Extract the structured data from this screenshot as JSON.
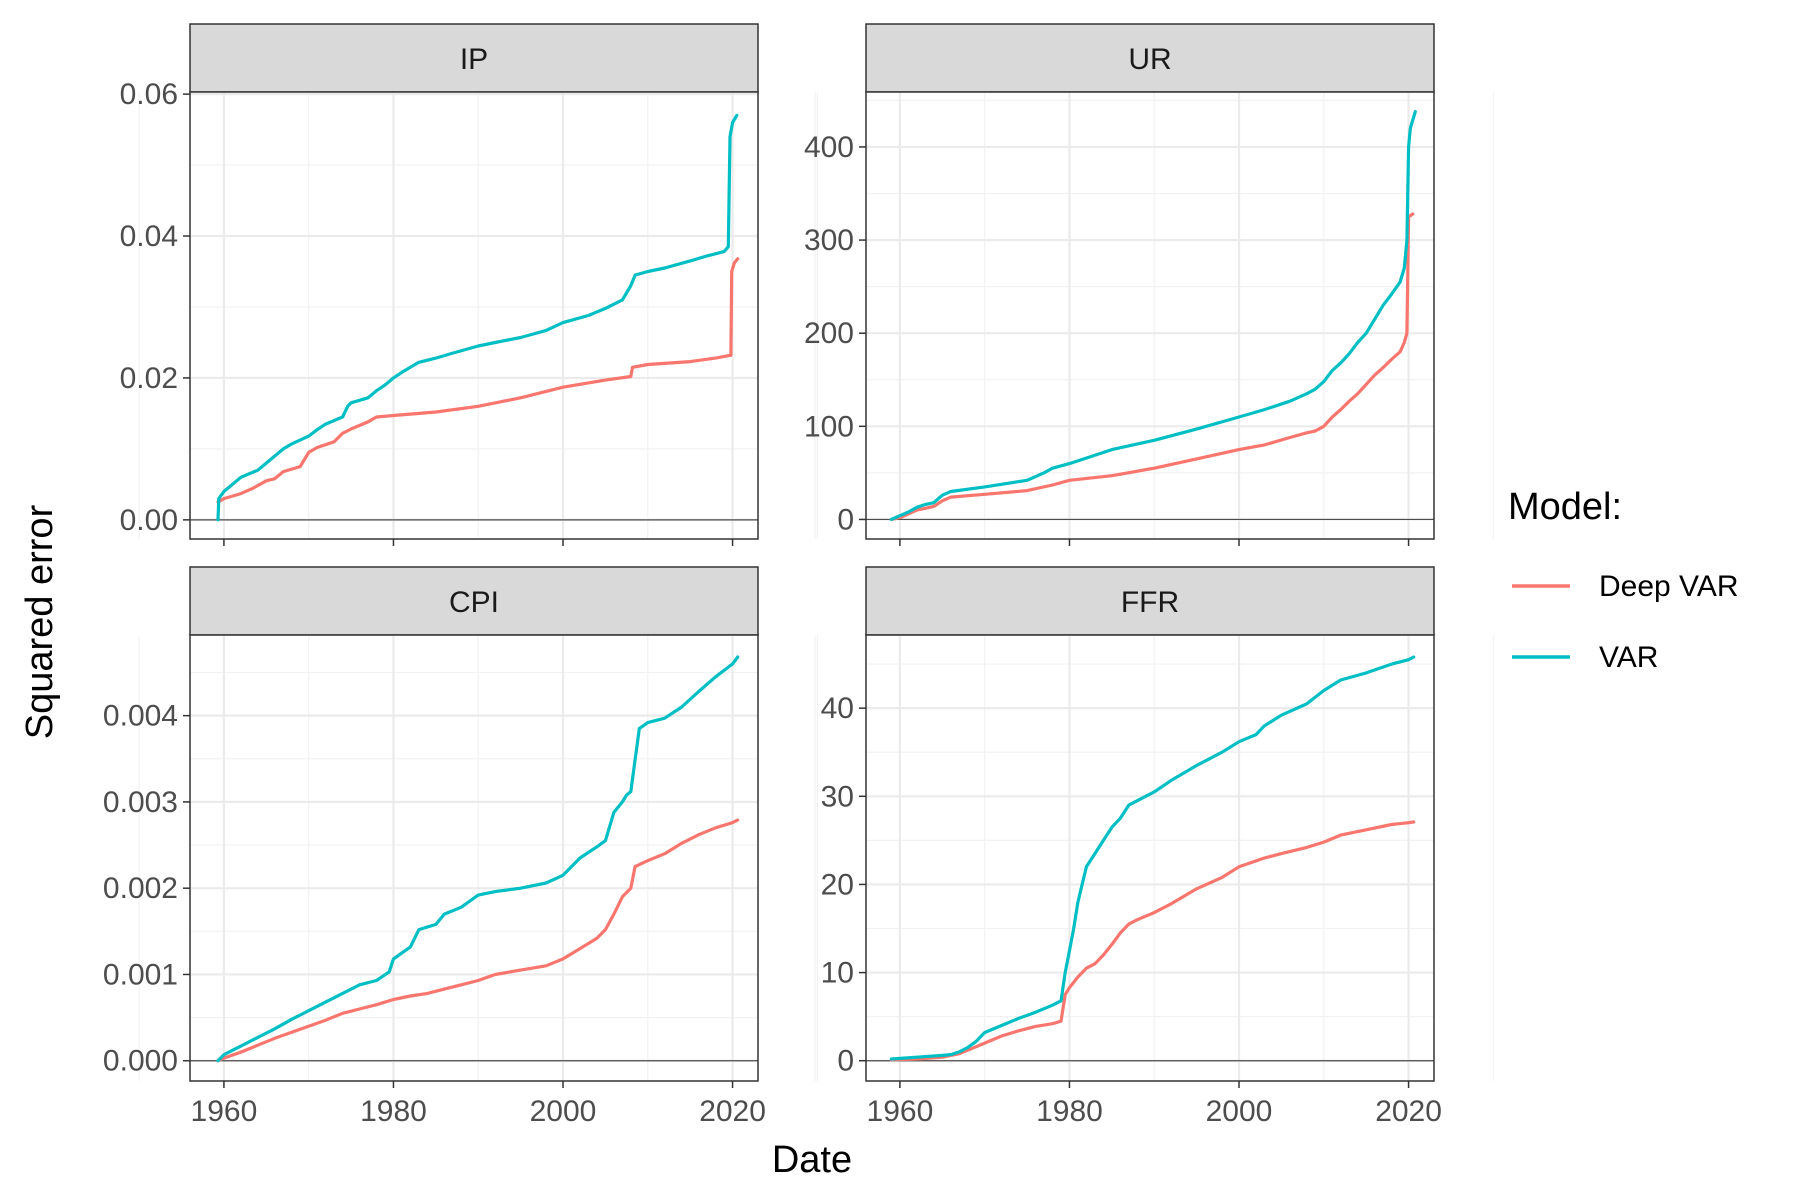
{
  "axis": {
    "xlabel": "Date",
    "ylabel": "Squared error"
  },
  "legend": {
    "title": "Model:",
    "placement": "right",
    "items": [
      {
        "name": "Deep VAR",
        "color": "#F8766D"
      },
      {
        "name": "VAR",
        "color": "#00BFC4"
      }
    ]
  },
  "colors": {
    "deep_var": "#F8766D",
    "var": "#00BFC4",
    "strip_bg": "#D9D9D9",
    "grid": "#EBEBEB"
  },
  "chart_data": [
    {
      "type": "line",
      "title": "IP",
      "xlim": [
        1956,
        2023
      ],
      "x_ticks": [
        "1960",
        "1980",
        "2000",
        "2020"
      ],
      "ylim": [
        -0.0027,
        0.0603
      ],
      "y_ticks": [
        "0.00",
        "0.02",
        "0.04",
        "0.06"
      ],
      "grid": true,
      "series": [
        {
          "name": "Deep VAR",
          "x": [
            1959.3,
            1960,
            1962,
            1963.5,
            1965,
            1966,
            1967,
            1969,
            1969.5,
            1970,
            1971,
            1973,
            1974,
            1975,
            1977,
            1978,
            1980,
            1985,
            1990,
            1995,
            2000,
            2005,
            2008,
            2008.2,
            2010,
            2015,
            2018,
            2019.8,
            2019.9,
            2020.2,
            2020.6
          ],
          "y": [
            0.0025,
            0.003,
            0.0037,
            0.0045,
            0.0055,
            0.0058,
            0.0068,
            0.0075,
            0.0085,
            0.0095,
            0.0102,
            0.011,
            0.0122,
            0.0128,
            0.0138,
            0.0145,
            0.0147,
            0.0152,
            0.016,
            0.0172,
            0.0187,
            0.0197,
            0.0202,
            0.0215,
            0.0219,
            0.0223,
            0.0228,
            0.0232,
            0.035,
            0.0362,
            0.0368
          ]
        },
        {
          "name": "VAR",
          "x": [
            1959.3,
            1959.4,
            1960,
            1961,
            1962,
            1963,
            1964,
            1965,
            1966,
            1967,
            1968,
            1970,
            1971,
            1972,
            1974,
            1974.6,
            1975,
            1977,
            1978,
            1979,
            1980,
            1981,
            1982,
            1983,
            1985,
            1987,
            1990,
            1992,
            1995,
            1998,
            2000,
            2003,
            2005,
            2007,
            2008,
            2008.5,
            2010,
            2012,
            2015,
            2017,
            2019,
            2019.5,
            2019.7,
            2020,
            2020.5
          ],
          "y": [
            0.0,
            0.003,
            0.004,
            0.005,
            0.006,
            0.0065,
            0.007,
            0.008,
            0.009,
            0.01,
            0.0107,
            0.0118,
            0.0127,
            0.0135,
            0.0145,
            0.016,
            0.0165,
            0.0172,
            0.0182,
            0.019,
            0.02,
            0.0208,
            0.0215,
            0.0222,
            0.0228,
            0.0235,
            0.0245,
            0.025,
            0.0257,
            0.0267,
            0.0278,
            0.0288,
            0.0298,
            0.031,
            0.033,
            0.0345,
            0.035,
            0.0355,
            0.0365,
            0.0372,
            0.0378,
            0.0385,
            0.054,
            0.056,
            0.057
          ]
        }
      ]
    },
    {
      "type": "line",
      "title": "UR",
      "xlim": [
        1956,
        2023
      ],
      "x_ticks": [
        "1960",
        "1980",
        "2000",
        "2020"
      ],
      "ylim": [
        -21,
        459
      ],
      "y_ticks": [
        "0",
        "100",
        "200",
        "300",
        "400"
      ],
      "grid": true,
      "series": [
        {
          "name": "Deep VAR",
          "x": [
            1959,
            1960,
            1961,
            1962,
            1963,
            1964,
            1965,
            1966,
            1970,
            1975,
            1978,
            1980,
            1985,
            1990,
            1995,
            2000,
            2003,
            2006,
            2008,
            2009,
            2010,
            2011,
            2012,
            2013,
            2014,
            2015,
            2016,
            2017,
            2018,
            2019,
            2019.5,
            2019.8,
            2020,
            2020.5
          ],
          "y": [
            0,
            2,
            6,
            10,
            12,
            14,
            20,
            24,
            27,
            31,
            37,
            42,
            47,
            55,
            65,
            75,
            80,
            88,
            93,
            95,
            100,
            110,
            118,
            127,
            135,
            145,
            155,
            163,
            172,
            180,
            190,
            200,
            325,
            328
          ]
        },
        {
          "name": "VAR",
          "x": [
            1959,
            1960,
            1961,
            1962,
            1963,
            1964,
            1965,
            1966,
            1970,
            1975,
            1977,
            1978,
            1980,
            1985,
            1990,
            1995,
            2000,
            2003,
            2006,
            2008,
            2009,
            2010,
            2011,
            2012,
            2013,
            2014,
            2015,
            2016,
            2017,
            2018,
            2019,
            2019.5,
            2019.8,
            2020,
            2020.2,
            2020.8
          ],
          "y": [
            0,
            4,
            8,
            13,
            16,
            18,
            26,
            30,
            35,
            42,
            50,
            55,
            60,
            75,
            85,
            97,
            110,
            118,
            127,
            135,
            140,
            148,
            160,
            168,
            178,
            190,
            200,
            215,
            230,
            242,
            255,
            270,
            300,
            400,
            420,
            438
          ]
        }
      ]
    },
    {
      "type": "line",
      "title": "CPI",
      "xlim": [
        1956,
        2023
      ],
      "x_ticks": [
        "1960",
        "1980",
        "2000",
        "2020"
      ],
      "ylim": [
        -0.000235,
        0.004935
      ],
      "y_ticks": [
        "0.000",
        "0.001",
        "0.002",
        "0.003",
        "0.004"
      ],
      "grid": true,
      "series": [
        {
          "name": "Deep VAR",
          "x": [
            1959.3,
            1960,
            1962,
            1964,
            1966,
            1968,
            1970,
            1972,
            1974,
            1976,
            1978,
            1980,
            1982,
            1984,
            1986,
            1988,
            1990,
            1992,
            1995,
            1998,
            2000,
            2002,
            2004,
            2005,
            2006,
            2007,
            2008,
            2008.5,
            2010,
            2012,
            2014,
            2016,
            2018,
            2020,
            2020.6
          ],
          "y": [
            0.0,
            3e-05,
            0.0001,
            0.00018,
            0.00026,
            0.00033,
            0.0004,
            0.00047,
            0.00055,
            0.0006,
            0.00065,
            0.00071,
            0.00075,
            0.00078,
            0.00083,
            0.00088,
            0.00093,
            0.001,
            0.00105,
            0.0011,
            0.00118,
            0.0013,
            0.00142,
            0.00152,
            0.0017,
            0.0019,
            0.002,
            0.00225,
            0.00232,
            0.0024,
            0.00252,
            0.00262,
            0.0027,
            0.00276,
            0.00279
          ]
        },
        {
          "name": "VAR",
          "x": [
            1959.3,
            1960,
            1962,
            1964,
            1966,
            1968,
            1970,
            1972,
            1974,
            1976,
            1978,
            1979.5,
            1980,
            1982,
            1983,
            1984,
            1985,
            1986,
            1988,
            1990,
            1992,
            1995,
            1998,
            2000,
            2002,
            2004,
            2005,
            2006,
            2007,
            2007.5,
            2008,
            2009,
            2010,
            2012,
            2014,
            2016,
            2018,
            2020,
            2020.6
          ],
          "y": [
            0.0,
            7e-05,
            0.00017,
            0.00027,
            0.00037,
            0.00048,
            0.00058,
            0.00068,
            0.00078,
            0.00088,
            0.00093,
            0.00103,
            0.00118,
            0.00132,
            0.00152,
            0.00155,
            0.00158,
            0.0017,
            0.00178,
            0.00192,
            0.00196,
            0.002,
            0.00206,
            0.00215,
            0.00235,
            0.00248,
            0.00255,
            0.00288,
            0.003,
            0.00308,
            0.00312,
            0.00385,
            0.00392,
            0.00397,
            0.0041,
            0.00428,
            0.00445,
            0.0046,
            0.00468
          ]
        }
      ]
    },
    {
      "type": "line",
      "title": "FFR",
      "xlim": [
        1956,
        2023
      ],
      "x_ticks": [
        "1960",
        "1980",
        "2000",
        "2020"
      ],
      "ylim": [
        -2.3,
        48.3
      ],
      "y_ticks": [
        "0",
        "10",
        "20",
        "30",
        "40"
      ],
      "grid": true,
      "series": [
        {
          "name": "Deep VAR",
          "x": [
            1959,
            1962,
            1965,
            1967,
            1968,
            1970,
            1972,
            1974,
            1976,
            1978,
            1979,
            1979.5,
            1980,
            1981,
            1982,
            1983,
            1984,
            1985,
            1986,
            1987,
            1988,
            1990,
            1992,
            1995,
            1998,
            2000,
            2003,
            2005,
            2008,
            2010,
            2012,
            2015,
            2018,
            2020,
            2020.6
          ],
          "y": [
            0.1,
            0.2,
            0.4,
            0.8,
            1.2,
            2.0,
            2.8,
            3.4,
            3.9,
            4.2,
            4.5,
            7.5,
            8.3,
            9.5,
            10.5,
            11.0,
            12.0,
            13.2,
            14.5,
            15.5,
            16.0,
            16.8,
            17.8,
            19.5,
            20.8,
            22.0,
            23.0,
            23.5,
            24.2,
            24.8,
            25.6,
            26.2,
            26.8,
            27.0,
            27.1
          ]
        },
        {
          "name": "VAR",
          "x": [
            1959,
            1962,
            1965,
            1966,
            1967,
            1968,
            1969,
            1970,
            1972,
            1974,
            1976,
            1978,
            1979,
            1979.5,
            1980,
            1980.5,
            1981,
            1982,
            1983,
            1984,
            1985,
            1986,
            1987,
            1988,
            1990,
            1992,
            1995,
            1998,
            2000,
            2002,
            2003,
            2005,
            2008,
            2010,
            2012,
            2015,
            2018,
            2020,
            2020.6
          ],
          "y": [
            0.2,
            0.4,
            0.6,
            0.7,
            1.0,
            1.5,
            2.2,
            3.2,
            4.0,
            4.8,
            5.5,
            6.3,
            6.8,
            10.0,
            12.5,
            15.0,
            18.0,
            22.0,
            23.5,
            25.0,
            26.5,
            27.5,
            29.0,
            29.5,
            30.5,
            31.8,
            33.5,
            35.0,
            36.2,
            37.0,
            38.0,
            39.2,
            40.5,
            42.0,
            43.2,
            44.0,
            45.0,
            45.5,
            45.8
          ]
        }
      ]
    }
  ]
}
